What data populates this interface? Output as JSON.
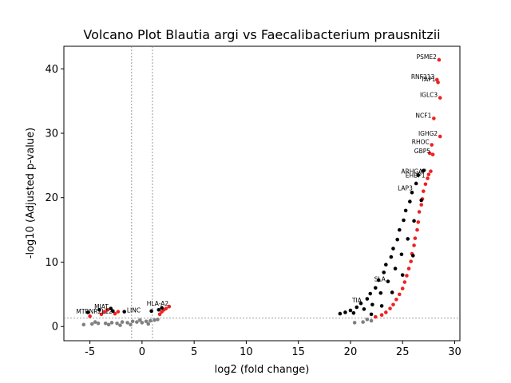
{
  "chart_data": {
    "type": "scatter",
    "title": "Volcano Plot Blautia argi vs Faecalibacterium prausnitzii",
    "xlabel": "log2 (fold change)",
    "ylabel": "-log10 (Adjusted p-value)",
    "xlim": [
      -7.5,
      30.5
    ],
    "ylim": [
      -2.2,
      43.5
    ],
    "xticks": [
      -5,
      0,
      5,
      10,
      15,
      20,
      25,
      30
    ],
    "yticks": [
      0,
      10,
      20,
      30,
      40
    ],
    "grid": false,
    "legend": "none",
    "threshold_lines": {
      "vertical": [
        -1,
        1
      ],
      "horizontal": [
        1.3
      ]
    },
    "colors": {
      "significant": "#ee2222",
      "nonsignificant": "#808080",
      "dense_points": "#000000",
      "threshold_line": "#808080"
    },
    "series": [
      {
        "color": "#ee2222",
        "points": [
          [
            28.5,
            41.4
          ],
          [
            28.3,
            38.3
          ],
          [
            28.4,
            37.9
          ],
          [
            28.6,
            35.5
          ],
          [
            28.0,
            32.3
          ],
          [
            28.6,
            29.5
          ],
          [
            27.8,
            28.2
          ],
          [
            27.6,
            26.9
          ],
          [
            27.9,
            26.7
          ],
          [
            27.7,
            24.1
          ],
          [
            27.5,
            23.6
          ],
          [
            27.4,
            23.0
          ],
          [
            27.2,
            22.1
          ],
          [
            27.0,
            21.0
          ],
          [
            26.9,
            19.8
          ],
          [
            26.8,
            18.9
          ],
          [
            26.6,
            17.8
          ],
          [
            26.5,
            16.2
          ],
          [
            26.4,
            15.0
          ],
          [
            26.2,
            13.7
          ],
          [
            26.1,
            12.6
          ],
          [
            25.9,
            11.3
          ],
          [
            25.8,
            10.1
          ],
          [
            25.6,
            9.0
          ],
          [
            25.4,
            7.9
          ],
          [
            25.2,
            6.9
          ],
          [
            25.0,
            5.9
          ],
          [
            24.7,
            5.0
          ],
          [
            24.4,
            4.2
          ],
          [
            24.1,
            3.4
          ],
          [
            23.8,
            2.8
          ],
          [
            23.4,
            2.2
          ],
          [
            23.0,
            1.8
          ],
          [
            22.4,
            1.5
          ],
          [
            -3.9,
            1.9
          ],
          [
            -3.6,
            2.3
          ],
          [
            -3.3,
            2.6
          ],
          [
            -2.3,
            2.3
          ],
          [
            -2.6,
            2.0
          ],
          [
            -5.0,
            1.6
          ],
          [
            1.9,
            2.3
          ],
          [
            2.1,
            2.6
          ],
          [
            2.3,
            2.8
          ],
          [
            2.6,
            3.1
          ],
          [
            1.7,
            1.9
          ]
        ]
      },
      {
        "color": "#808080",
        "points": [
          [
            -5.6,
            0.3
          ],
          [
            -4.8,
            0.4
          ],
          [
            -4.2,
            0.5
          ],
          [
            -3.5,
            0.5
          ],
          [
            -2.9,
            0.6
          ],
          [
            -2.4,
            0.5
          ],
          [
            -1.9,
            0.7
          ],
          [
            -1.4,
            0.6
          ],
          [
            -0.9,
            0.8
          ],
          [
            -0.5,
            0.7
          ],
          [
            0.0,
            0.6
          ],
          [
            0.4,
            0.8
          ],
          [
            0.8,
            0.9
          ],
          [
            1.2,
            1.0
          ],
          [
            1.5,
            1.1
          ],
          [
            -3.2,
            0.3
          ],
          [
            -2.1,
            0.2
          ],
          [
            -1.1,
            0.3
          ],
          [
            0.6,
            0.4
          ],
          [
            20.4,
            0.6
          ],
          [
            21.2,
            0.7
          ],
          [
            22.0,
            0.9
          ],
          [
            21.6,
            1.1
          ],
          [
            -4.5,
            0.7
          ],
          [
            -0.2,
            1.0
          ]
        ]
      },
      {
        "color": "#000000",
        "points": [
          [
            19.0,
            2.0
          ],
          [
            19.5,
            2.2
          ],
          [
            20.0,
            2.5
          ],
          [
            20.3,
            2.1
          ],
          [
            20.6,
            3.0
          ],
          [
            21.0,
            3.6
          ],
          [
            21.3,
            2.7
          ],
          [
            21.6,
            4.3
          ],
          [
            21.9,
            5.1
          ],
          [
            22.1,
            3.4
          ],
          [
            22.4,
            6.0
          ],
          [
            22.7,
            7.2
          ],
          [
            22.9,
            5.2
          ],
          [
            23.2,
            8.4
          ],
          [
            23.4,
            9.6
          ],
          [
            23.6,
            7.0
          ],
          [
            23.9,
            10.8
          ],
          [
            24.1,
            12.1
          ],
          [
            24.3,
            9.0
          ],
          [
            24.5,
            13.5
          ],
          [
            24.7,
            15.0
          ],
          [
            24.9,
            11.2
          ],
          [
            25.1,
            16.5
          ],
          [
            25.3,
            18.0
          ],
          [
            25.5,
            13.6
          ],
          [
            25.7,
            19.4
          ],
          [
            25.9,
            20.8
          ],
          [
            26.1,
            16.4
          ],
          [
            26.3,
            22.2
          ],
          [
            26.5,
            23.5
          ],
          [
            26.8,
            19.6
          ],
          [
            27.0,
            24.2
          ],
          [
            22.0,
            1.9
          ],
          [
            23.0,
            3.2
          ],
          [
            24.0,
            5.3
          ],
          [
            25.0,
            8.0
          ],
          [
            26.0,
            11.0
          ],
          [
            -5.2,
            2.2
          ],
          [
            -4.1,
            2.6
          ],
          [
            -2.8,
            2.4
          ],
          [
            1.6,
            2.6
          ],
          [
            1.9,
            2.9
          ],
          [
            -1.7,
            2.3
          ],
          [
            0.9,
            2.4
          ],
          [
            -3.0,
            2.8
          ]
        ]
      }
    ],
    "annotations": [
      {
        "text": "PSME2",
        "x": 28.5,
        "y": 41.4,
        "align": "end"
      },
      {
        "text": "RNF213",
        "x": 28.3,
        "y": 38.3,
        "align": "end"
      },
      {
        "text": "TAP1",
        "x": 28.4,
        "y": 37.9,
        "align": "end"
      },
      {
        "text": "IGLC3",
        "x": 28.6,
        "y": 35.5,
        "align": "end"
      },
      {
        "text": "NCF1",
        "x": 28.0,
        "y": 32.3,
        "align": "end"
      },
      {
        "text": "IGHG2",
        "x": 28.6,
        "y": 29.5,
        "align": "end"
      },
      {
        "text": "RHOC",
        "x": 27.8,
        "y": 28.2,
        "align": "end"
      },
      {
        "text": "GBP5",
        "x": 27.9,
        "y": 26.8,
        "align": "end"
      },
      {
        "text": "ARHGAP",
        "x": 27.5,
        "y": 23.6,
        "align": "end"
      },
      {
        "text": "EHBP1",
        "x": 27.4,
        "y": 23.0,
        "align": "end"
      },
      {
        "text": "LAP3",
        "x": 26.2,
        "y": 21.0,
        "align": "end"
      },
      {
        "text": "SLA",
        "x": 23.6,
        "y": 6.9,
        "align": "end"
      },
      {
        "text": "TIA",
        "x": 21.3,
        "y": 3.6,
        "align": "end"
      },
      {
        "text": "MTRNR2L12",
        "x": -2.6,
        "y": 1.9,
        "align": "end"
      },
      {
        "text": "MIAT",
        "x": -3.9,
        "y": 2.6,
        "align": "middle"
      },
      {
        "text": "HLA-A2",
        "x": 1.5,
        "y": 3.1,
        "align": "middle"
      },
      {
        "text": "LINC",
        "x": -0.8,
        "y": 2.1,
        "align": "middle"
      }
    ]
  }
}
